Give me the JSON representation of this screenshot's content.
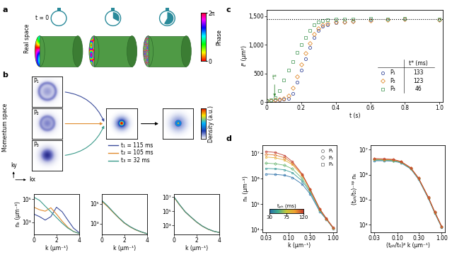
{
  "panel_labels": [
    "a",
    "b",
    "c",
    "d"
  ],
  "panel_a": {
    "time_label": "t = 0",
    "row_label": "Real space",
    "colorbar": {
      "label": "Phase",
      "range": [
        0,
        6.2832
      ],
      "ticks": [
        {
          "value": 0,
          "label": "0"
        },
        {
          "value": 6.2832,
          "label": "2π"
        }
      ]
    }
  },
  "panel_b": {
    "row_label": "Momentum space",
    "image_labels": [
      "P₁",
      "P₂",
      "P₃"
    ],
    "times": [
      {
        "label": "t₁ = 115 ms",
        "color": "#3b4c9b"
      },
      {
        "label": "t₂ = 105 ms",
        "color": "#e08a2c"
      },
      {
        "label": "t₃ = 32 ms",
        "color": "#3a9a8a"
      }
    ],
    "axis_labels": [
      "kx",
      "ky"
    ],
    "colorbar": {
      "label": "Density (a.u.)",
      "range": [
        0,
        1
      ]
    }
  },
  "chart_data": [
    {
      "type": "line",
      "log": "y",
      "xlabel": "k (μm⁻¹)",
      "ylabel": "nₖ (μm⁻³)",
      "x": [
        0,
        0.5,
        1,
        1.5,
        2,
        2.5,
        3,
        3.5,
        4
      ],
      "series": [
        {
          "color": "#3b4c9b",
          "values": [
            5000,
            3000,
            1500,
            3000,
            20000,
            8000,
            1500,
            300,
            120
          ]
        },
        {
          "color": "#e08a2c",
          "values": [
            20000,
            12000,
            9000,
            18000,
            5000,
            1200,
            350,
            150,
            100
          ]
        },
        {
          "color": "#3a9a8a",
          "values": [
            150000,
            80000,
            25000,
            8000,
            2500,
            800,
            300,
            150,
            100
          ]
        }
      ],
      "xlim": [
        0,
        4
      ],
      "xticks": [
        0,
        2,
        4
      ],
      "ylim": [
        80,
        300000
      ],
      "yticks": [
        {
          "value": 1000,
          "label": "10³"
        },
        {
          "value": 100000,
          "label": "10⁵"
        }
      ]
    },
    {
      "type": "line",
      "log": "y",
      "xlabel": "k (μm⁻¹)",
      "x": [
        0,
        0.5,
        1,
        1.5,
        2,
        2.5,
        3,
        3.5,
        4
      ],
      "series": [
        {
          "color": "#3b4c9b",
          "values": [
            200000,
            60000,
            15000,
            4000,
            1200,
            500,
            250,
            150,
            100
          ]
        },
        {
          "color": "#e08a2c",
          "values": [
            180000,
            55000,
            14000,
            3800,
            1150,
            480,
            240,
            145,
            100
          ]
        },
        {
          "color": "#3a9a8a",
          "values": [
            220000,
            65000,
            16000,
            4200,
            1250,
            510,
            255,
            150,
            100
          ]
        }
      ],
      "xlim": [
        0,
        4
      ],
      "xticks": [
        0,
        2,
        4
      ],
      "ylim": [
        80,
        1000000
      ],
      "yticks": [
        {
          "value": 1000,
          "label": "10³"
        },
        {
          "value": 100000,
          "label": "10⁵"
        }
      ]
    },
    {
      "type": "line",
      "log": "y",
      "xlabel": "k (μm⁻¹)",
      "x": [
        0,
        0.5,
        1,
        1.5,
        2,
        2.5,
        3,
        3.5,
        4
      ],
      "series": [
        {
          "color": "#3b4c9b",
          "values": [
            10000000,
            800000,
            80000,
            15000,
            3000,
            800,
            300,
            150,
            100
          ]
        },
        {
          "color": "#e08a2c",
          "values": [
            9000000,
            750000,
            78000,
            14500,
            2900,
            780,
            290,
            148,
            100
          ]
        },
        {
          "color": "#3a9a8a",
          "values": [
            11000000,
            850000,
            82000,
            15500,
            3100,
            820,
            310,
            152,
            100
          ]
        }
      ],
      "xlim": [
        0,
        4
      ],
      "xticks": [
        0,
        2,
        4
      ],
      "ylim": [
        50,
        30000000
      ],
      "yticks": [
        {
          "value": 1000,
          "label": "10³"
        },
        {
          "value": 100000,
          "label": "10⁵"
        },
        {
          "value": 10000000,
          "label": "10⁷"
        }
      ]
    },
    {
      "type": "scatter",
      "xlabel": "t (s)",
      "ylabel": "ℓ² (μm²)",
      "x": [
        0,
        0.025,
        0.05,
        0.075,
        0.1,
        0.125,
        0.15,
        0.175,
        0.2,
        0.225,
        0.25,
        0.275,
        0.3,
        0.325,
        0.35,
        0.4,
        0.45,
        0.5,
        0.6,
        0.7,
        0.8,
        1.0
      ],
      "series": [
        {
          "name": "P₁",
          "color": "#3b4c9b",
          "marker": "o",
          "t_star": 133,
          "values": [
            30,
            30,
            35,
            40,
            50,
            60,
            150,
            350,
            550,
            750,
            950,
            1120,
            1250,
            1320,
            1350,
            1380,
            1400,
            1410,
            1430,
            1440,
            1450,
            1430
          ]
        },
        {
          "name": "P₂",
          "color": "#e08a2c",
          "marker": "D",
          "t_star": 123,
          "values": [
            30,
            30,
            35,
            45,
            60,
            110,
            250,
            450,
            650,
            850,
            1030,
            1180,
            1280,
            1340,
            1370,
            1390,
            1400,
            1410,
            1420,
            1430,
            1440,
            1430
          ]
        },
        {
          "name": "P₃",
          "color": "#5aa469",
          "marker": "s",
          "t_star": 46,
          "values": [
            30,
            40,
            80,
            200,
            380,
            560,
            700,
            860,
            1000,
            1120,
            1250,
            1340,
            1400,
            1420,
            1430,
            1440,
            1450,
            1450,
            1460,
            1450,
            1460,
            1450
          ]
        }
      ],
      "table_header": "t* (ms)",
      "reference_line": 1450,
      "annotation": {
        "text": "t*",
        "x": 0.046,
        "y": 60
      },
      "xlim": [
        0,
        1.02
      ],
      "xticks": [
        0,
        0.2,
        0.4,
        0.6,
        0.8,
        1.0
      ],
      "ylim": [
        0,
        1600
      ],
      "yticks": [
        0,
        500,
        {
          "value": 1000,
          "label": "1,000"
        },
        {
          "value": 1500,
          "label": "1,500"
        }
      ]
    },
    {
      "type": "line",
      "log": true,
      "xlabel": "k (μm⁻¹)",
      "ylabel": "nₖ (μm⁻³)",
      "x": [
        0.03,
        0.05,
        0.08,
        0.12,
        0.2,
        0.3,
        0.5,
        0.7,
        1.0
      ],
      "series": [
        {
          "t_ph": 30,
          "marker": "o",
          "values": [
            1500000,
            1450000,
            1350000,
            1100000,
            600000,
            250000,
            50000,
            25000,
            11000
          ]
        },
        {
          "t_ph": 45,
          "marker": "s",
          "values": [
            2500000,
            2400000,
            2200000,
            1700000,
            800000,
            300000,
            55000,
            25500,
            11200
          ]
        },
        {
          "t_ph": 60,
          "marker": "D",
          "values": [
            4000000,
            3800000,
            3300000,
            2400000,
            1000000,
            330000,
            58000,
            26000,
            11400
          ]
        },
        {
          "t_ph": 90,
          "marker": "s",
          "values": [
            7000000,
            6500000,
            5300000,
            3500000,
            1300000,
            370000,
            62000,
            26500,
            11600
          ]
        },
        {
          "t_ph": 105,
          "marker": "D",
          "values": [
            9000000,
            8300000,
            6500000,
            4000000,
            1400000,
            380000,
            63000,
            27000,
            11800
          ]
        },
        {
          "t_ph": 120,
          "marker": "o",
          "values": [
            11500000,
            10500000,
            8000000,
            4600000,
            1500000,
            390000,
            64000,
            27500,
            12000
          ]
        }
      ],
      "colorbar": {
        "label": "tₚₕ (ms)",
        "range": [
          30,
          120
        ],
        "ticks": [
          30,
          75,
          120
        ]
      },
      "legend": "upper right",
      "legend_entries": [
        {
          "name": "P₁",
          "marker": "o"
        },
        {
          "name": "P₂",
          "marker": "D"
        },
        {
          "name": "P₃",
          "marker": "s"
        }
      ],
      "xlim": [
        0.025,
        1.2
      ],
      "xticks": [
        0.03,
        {
          "value": 0.1,
          "label": "0.10"
        },
        {
          "value": 0.3,
          "label": "0.30"
        },
        {
          "value": 1.0,
          "label": "1.00"
        }
      ],
      "ylim": [
        8000,
        20000000
      ],
      "yticks": [
        {
          "value": 10000,
          "label": "10⁴"
        },
        {
          "value": 100000,
          "label": "10⁵"
        },
        {
          "value": 1000000,
          "label": "10⁶"
        },
        {
          "value": 10000000,
          "label": "10⁷"
        }
      ]
    },
    {
      "type": "line",
      "log": true,
      "xlabel": "(tₚₕ/t₀)ᵝ k (μm⁻¹)",
      "ylabel": "(tₚₕ/t₀)⁻³ᵝ nₖ",
      "x": [
        0.03,
        0.05,
        0.08,
        0.12,
        0.2,
        0.3,
        0.5,
        0.7,
        1.0
      ],
      "series": [
        {
          "t_ph": 30,
          "marker": "o",
          "values": [
            3600000,
            3600000,
            3500000,
            3000000,
            1700000,
            650000,
            110000,
            28000,
            7500
          ]
        },
        {
          "t_ph": 45,
          "marker": "s",
          "values": [
            3800000,
            3800000,
            3600000,
            3100000,
            1750000,
            680000,
            115000,
            29000,
            7800
          ]
        },
        {
          "t_ph": 60,
          "marker": "D",
          "values": [
            4000000,
            3900000,
            3700000,
            3200000,
            1800000,
            700000,
            120000,
            30000,
            8000
          ]
        },
        {
          "t_ph": 90,
          "marker": "s",
          "values": [
            4200000,
            4100000,
            3900000,
            3300000,
            1850000,
            720000,
            122000,
            31000,
            8200
          ]
        },
        {
          "t_ph": 105,
          "marker": "D",
          "values": [
            4300000,
            4200000,
            4000000,
            3350000,
            1900000,
            730000,
            124000,
            31500,
            8300
          ]
        },
        {
          "t_ph": 120,
          "marker": "o",
          "values": [
            4400000,
            4300000,
            4100000,
            3400000,
            1900000,
            740000,
            125000,
            32000,
            8400
          ]
        }
      ],
      "xlim": [
        0.025,
        1.2
      ],
      "xticks": [
        0.03,
        {
          "value": 0.1,
          "label": "0.10"
        },
        {
          "value": 0.3,
          "label": "0.30"
        },
        {
          "value": 1.0,
          "label": "1.00"
        }
      ],
      "ylim": [
        5000,
        15000000
      ],
      "yticks": [
        {
          "value": 10000,
          "label": "10⁴"
        },
        {
          "value": 100000,
          "label": "10⁵"
        },
        {
          "value": 1000000,
          "label": "10⁶"
        },
        {
          "value": 10000000,
          "label": "10⁷"
        }
      ]
    }
  ]
}
